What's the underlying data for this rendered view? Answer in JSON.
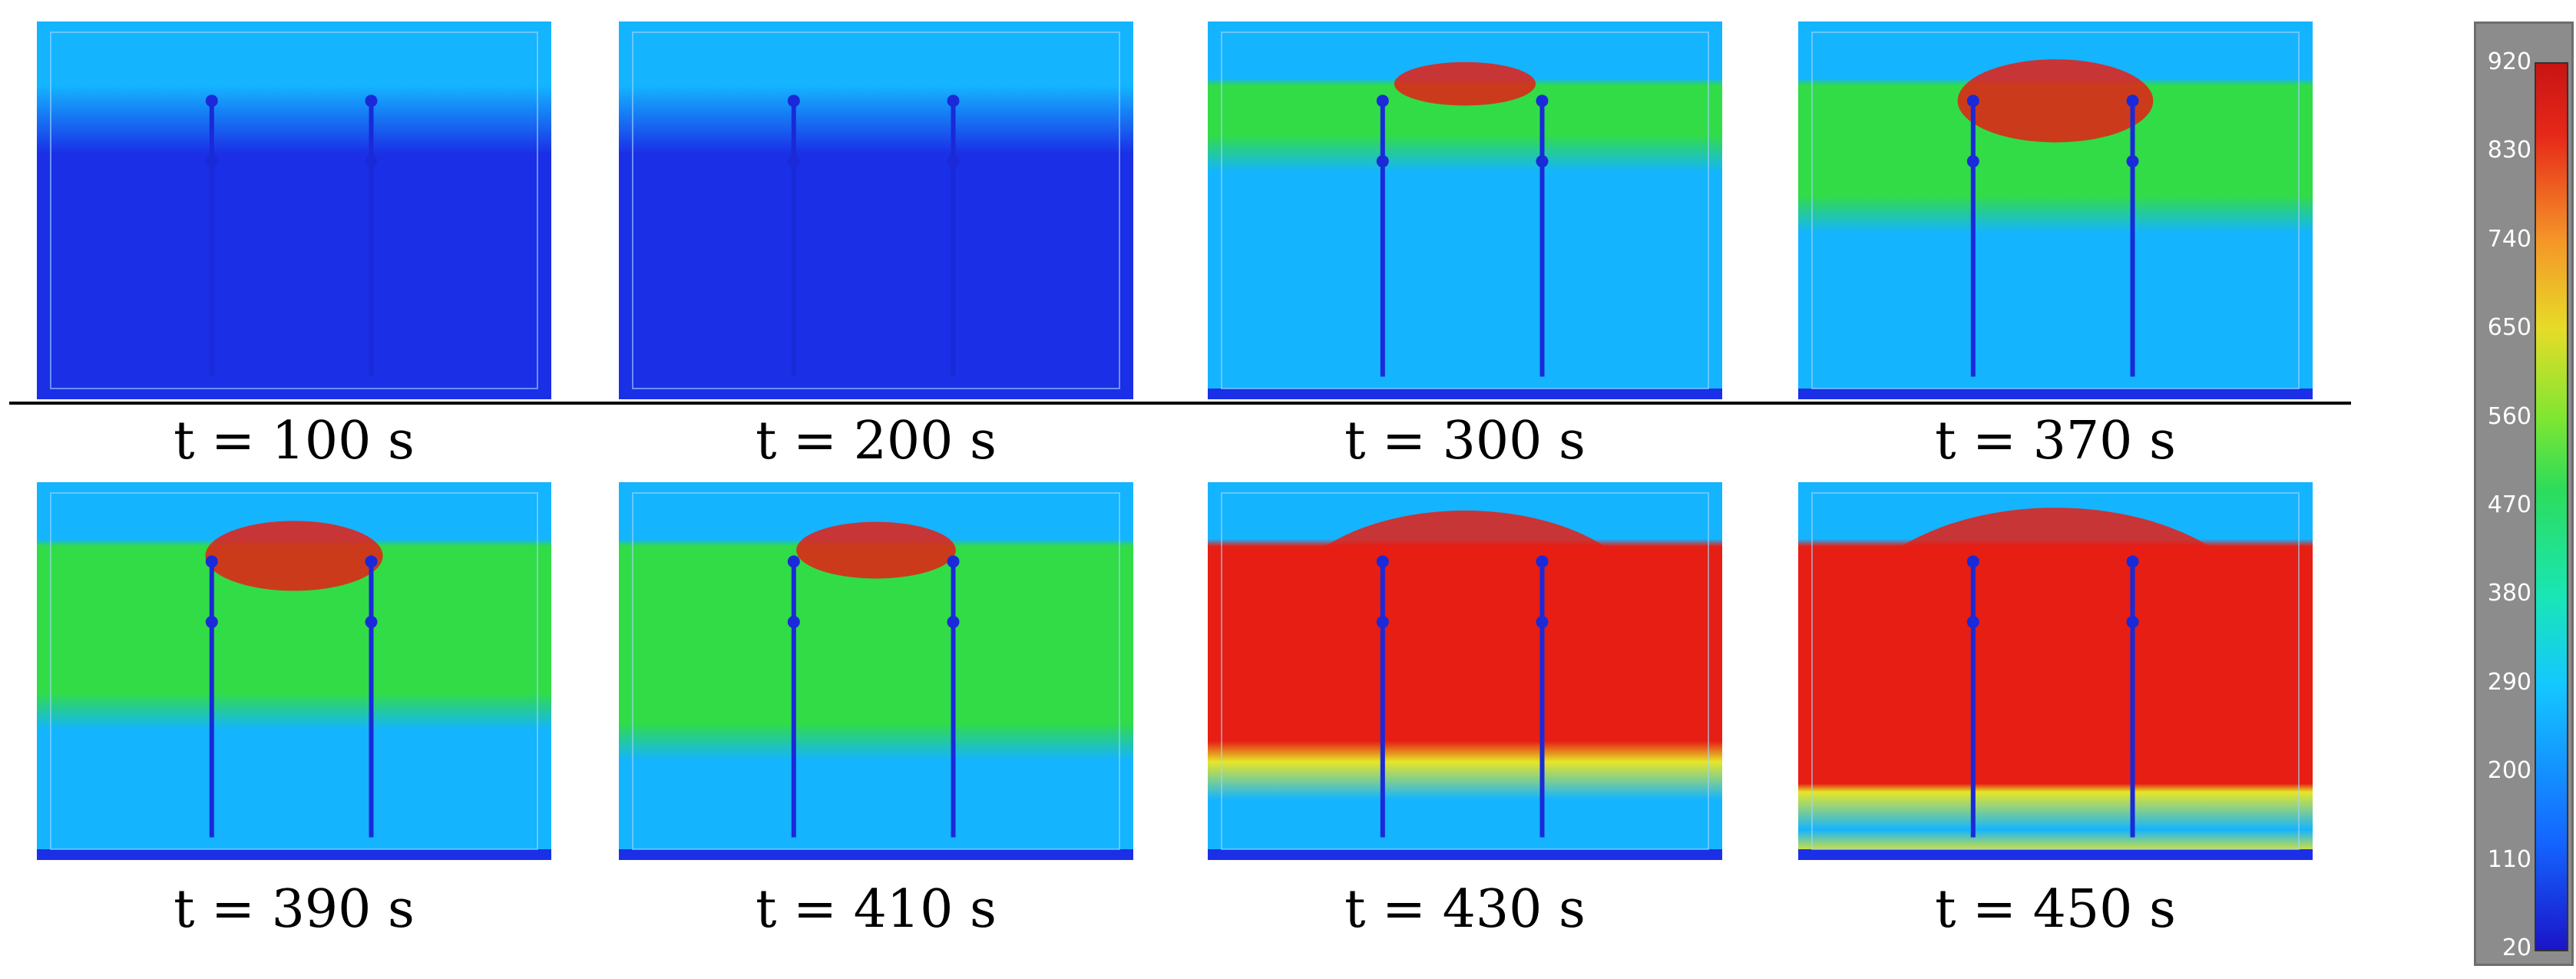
{
  "panels": [
    {
      "caption": "t = 100 s",
      "fill_level": 0.0,
      "hot_level": 0.0
    },
    {
      "caption": "t = 200 s",
      "fill_level": 0.05,
      "hot_level": 0.0
    },
    {
      "caption": "t = 300 s",
      "fill_level": 0.3,
      "hot_level": 0.05
    },
    {
      "caption": "t = 370 s",
      "fill_level": 0.5,
      "hot_level": 0.2
    },
    {
      "caption": "t = 390 s",
      "fill_level": 0.62,
      "hot_level": 0.15
    },
    {
      "caption": "t = 410 s",
      "fill_level": 0.72,
      "hot_level": 0.1
    },
    {
      "caption": "t = 430 s",
      "fill_level": 0.85,
      "hot_level": 0.7
    },
    {
      "caption": "t = 450 s",
      "fill_level": 0.95,
      "hot_level": 0.85
    }
  ],
  "colorbar": {
    "ticks": [
      "920",
      "830",
      "740",
      "650",
      "560",
      "470",
      "380",
      "290",
      "200",
      "110",
      "20"
    ],
    "min": 20,
    "max": 920
  },
  "colors": {
    "cold": "#1a2fe6",
    "cool": "#14b4ff",
    "warm": "#32dc46",
    "hot": "#e6e628",
    "very_hot": "#e61e14"
  }
}
